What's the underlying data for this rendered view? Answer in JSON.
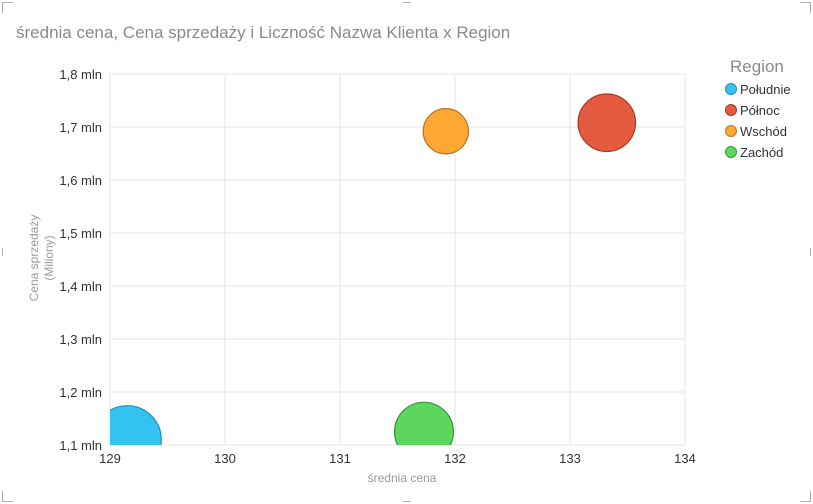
{
  "chart_data": {
    "type": "scatter",
    "title": "średnia cena, Cena sprzedaży i Liczność Nazwa Klienta x Region",
    "xlabel": "średnia cena",
    "ylabel": "Cena sprzedaży",
    "ylabel_sub": "(Miliony)",
    "xlim": [
      129,
      134
    ],
    "ylim": [
      1.1,
      1.8
    ],
    "x_ticks": [
      "129",
      "130",
      "131",
      "132",
      "133",
      "134"
    ],
    "y_ticks": [
      "1,1 mln",
      "1,2 mln",
      "1,3 mln",
      "1,4 mln",
      "1,5 mln",
      "1,6 mln",
      "1,7 mln",
      "1,8 mln"
    ],
    "grid": true,
    "legend_title": "Region",
    "legend_position": "right",
    "series": [
      {
        "name": "Południe",
        "x": 129.15,
        "y": 1.11,
        "size": 140,
        "color": "#33c3f0",
        "stroke": "#1d8fbd"
      },
      {
        "name": "Północ",
        "x": 133.32,
        "y": 1.708,
        "size": 100,
        "color": "#e55b3f",
        "stroke": "#a83a22"
      },
      {
        "name": "Wschód",
        "x": 131.92,
        "y": 1.692,
        "size": 62,
        "color": "#ffa733",
        "stroke": "#b87520"
      },
      {
        "name": "Zachód",
        "x": 131.73,
        "y": 1.125,
        "size": 105,
        "color": "#5cd65c",
        "stroke": "#389638"
      }
    ]
  }
}
